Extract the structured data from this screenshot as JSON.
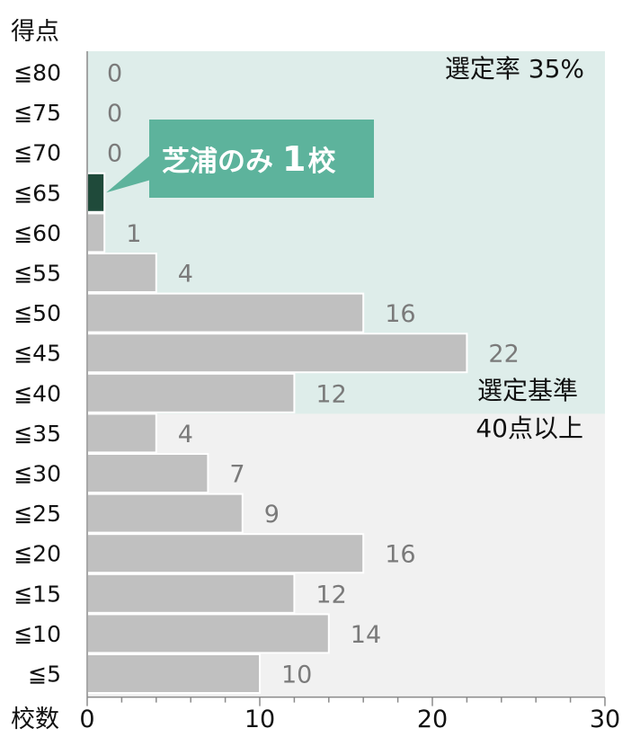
{
  "chart_data": {
    "type": "bar",
    "orientation": "horizontal",
    "y_axis_title": "得点",
    "x_axis_title": "校数",
    "categories": [
      "≦80",
      "≦75",
      "≦70",
      "≦65",
      "≦60",
      "≦55",
      "≦50",
      "≦45",
      "≦40",
      "≦35",
      "≦30",
      "≦25",
      "≦20",
      "≦15",
      "≦10",
      "≦5"
    ],
    "values": [
      0,
      0,
      0,
      1,
      1,
      4,
      16,
      22,
      12,
      4,
      7,
      9,
      16,
      12,
      14,
      10
    ],
    "value_labels": [
      "0",
      "0",
      "0",
      "",
      "1",
      "4",
      "16",
      "22",
      "12",
      "4",
      "7",
      "9",
      "16",
      "12",
      "14",
      "10"
    ],
    "highlight_index": 3,
    "xlim": [
      0,
      30
    ],
    "x_ticks": [
      0,
      10,
      20,
      30
    ],
    "x_tick_labels": [
      "0",
      "10",
      "20",
      "30"
    ],
    "bar_color": "#c0c0c0",
    "highlight_color": "#1f4a3a",
    "selected_zone_color": "#deedea",
    "background_zone_color": "#f1f1f1",
    "callout_color": "#5db39c",
    "selected_zone_through_index": 8,
    "callout": {
      "text": "芝浦のみ",
      "number": "1",
      "suffix": "校"
    },
    "selection_rate": "選定率 35%",
    "criteria_lines": [
      "選定基準",
      "40点以上"
    ]
  }
}
